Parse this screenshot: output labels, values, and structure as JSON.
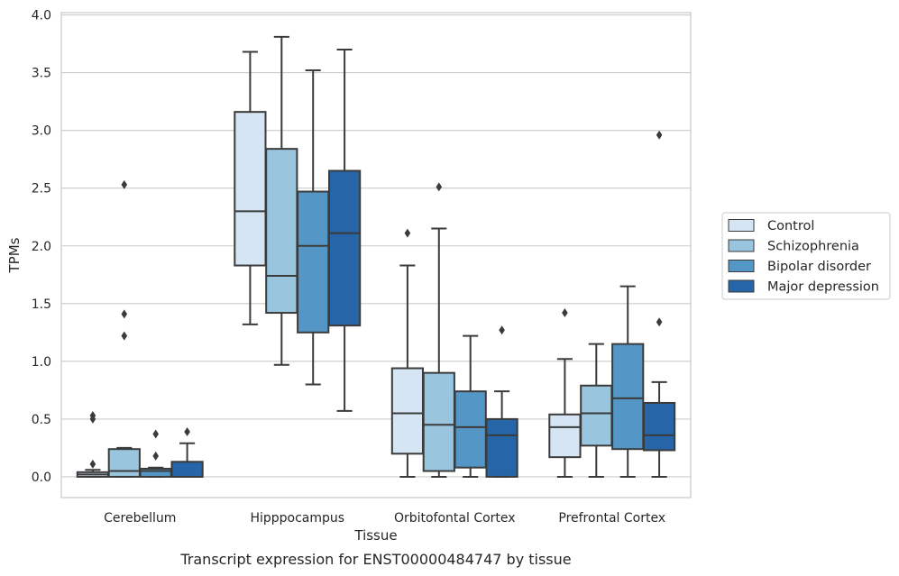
{
  "chart_data": {
    "type": "box",
    "caption": "Transcript expression for ENST00000484747 by tissue",
    "xlabel": "Tissue",
    "ylabel": "TPMs",
    "ylim": [
      -0.18,
      4.02
    ],
    "yticks": [
      0.0,
      0.5,
      1.0,
      1.5,
      2.0,
      2.5,
      3.0,
      3.5,
      4.0
    ],
    "ytick_labels": [
      "0.0",
      "0.5",
      "1.0",
      "1.5",
      "2.0",
      "2.5",
      "3.0",
      "3.5",
      "4.0"
    ],
    "grid": "horizontal",
    "legend_position": "right",
    "categories": [
      "Cerebellum",
      "Hipppocampus",
      "Orbitofontal Cortex",
      "Prefrontal Cortex"
    ],
    "series": [
      {
        "name": "Control",
        "color": "#d6e5f4",
        "boxes": [
          {
            "whislo": 0.0,
            "q1": 0.0,
            "med": 0.02,
            "q3": 0.04,
            "whishi": 0.06,
            "fliers": [
              0.11,
              0.5,
              0.53
            ]
          },
          {
            "whislo": 1.32,
            "q1": 1.83,
            "med": 2.3,
            "q3": 3.16,
            "whishi": 3.68,
            "fliers": []
          },
          {
            "whislo": 0.0,
            "q1": 0.2,
            "med": 0.55,
            "q3": 0.94,
            "whishi": 1.83,
            "fliers": [
              2.11
            ]
          },
          {
            "whislo": 0.0,
            "q1": 0.17,
            "med": 0.43,
            "q3": 0.54,
            "whishi": 1.02,
            "fliers": [
              1.42
            ]
          }
        ]
      },
      {
        "name": "Schizophrenia",
        "color": "#9ac5df",
        "boxes": [
          {
            "whislo": 0.0,
            "q1": 0.0,
            "med": 0.05,
            "q3": 0.24,
            "whishi": 0.25,
            "fliers": [
              1.22,
              1.41,
              2.53
            ]
          },
          {
            "whislo": 0.97,
            "q1": 1.42,
            "med": 1.74,
            "q3": 2.84,
            "whishi": 3.81,
            "fliers": []
          },
          {
            "whislo": 0.0,
            "q1": 0.05,
            "med": 0.45,
            "q3": 0.9,
            "whishi": 2.15,
            "fliers": [
              2.51
            ]
          },
          {
            "whislo": 0.0,
            "q1": 0.27,
            "med": 0.55,
            "q3": 0.79,
            "whishi": 1.15,
            "fliers": []
          }
        ]
      },
      {
        "name": "Bipolar disorder",
        "color": "#5497c6",
        "boxes": [
          {
            "whislo": 0.0,
            "q1": 0.0,
            "med": 0.05,
            "q3": 0.07,
            "whishi": 0.08,
            "fliers": [
              0.18,
              0.37
            ]
          },
          {
            "whislo": 0.8,
            "q1": 1.25,
            "med": 2.0,
            "q3": 2.47,
            "whishi": 3.52,
            "fliers": []
          },
          {
            "whislo": 0.0,
            "q1": 0.08,
            "med": 0.43,
            "q3": 0.74,
            "whishi": 1.22,
            "fliers": []
          },
          {
            "whislo": 0.0,
            "q1": 0.24,
            "med": 0.68,
            "q3": 1.15,
            "whishi": 1.65,
            "fliers": []
          }
        ]
      },
      {
        "name": "Major depression",
        "color": "#2565a8",
        "boxes": [
          {
            "whislo": 0.0,
            "q1": 0.0,
            "med": 0.0,
            "q3": 0.13,
            "whishi": 0.29,
            "fliers": [
              0.39
            ]
          },
          {
            "whislo": 0.57,
            "q1": 1.31,
            "med": 2.11,
            "q3": 2.65,
            "whishi": 3.7,
            "fliers": []
          },
          {
            "whislo": 0.0,
            "q1": 0.0,
            "med": 0.36,
            "q3": 0.5,
            "whishi": 0.74,
            "fliers": [
              1.27
            ]
          },
          {
            "whislo": 0.0,
            "q1": 0.23,
            "med": 0.36,
            "q3": 0.64,
            "whishi": 0.82,
            "fliers": [
              1.34,
              2.96
            ]
          }
        ]
      }
    ],
    "colors": {
      "box_edge": "#3b3b3b",
      "grid": "#cccccc",
      "frame": "#cccccc",
      "text": "#262626",
      "background": "#ffffff"
    }
  }
}
